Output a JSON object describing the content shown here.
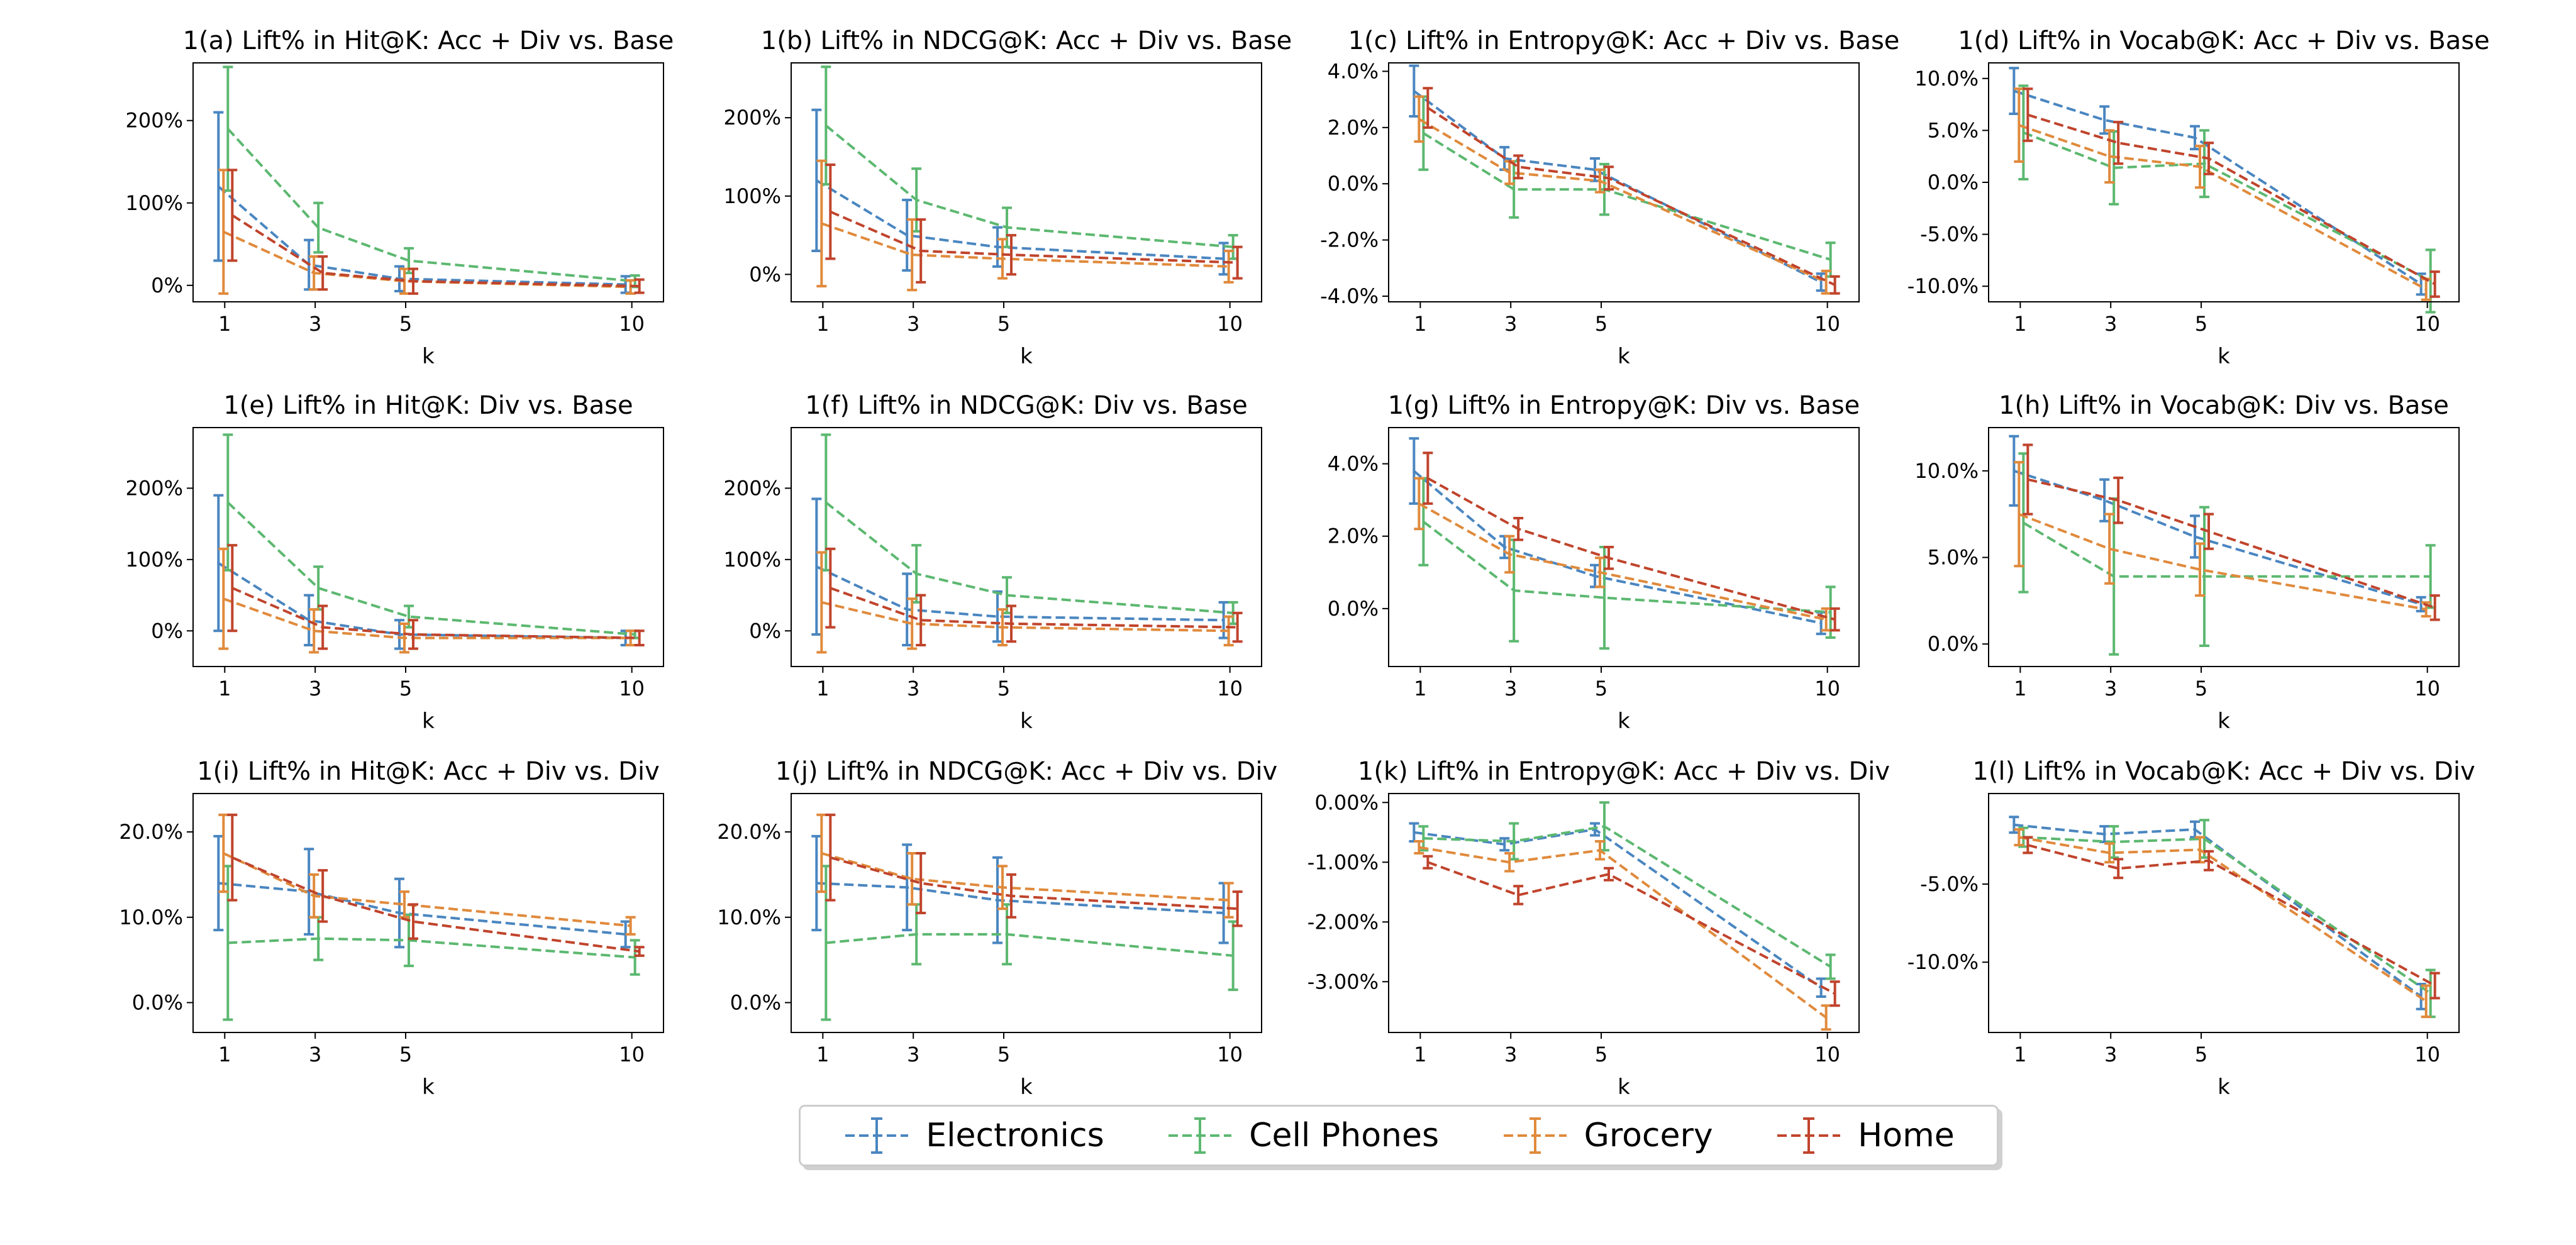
{
  "chart_data": {
    "type": "line",
    "x": [
      1,
      3,
      5,
      10
    ],
    "xlabel": "k",
    "series_names": [
      "Electronics",
      "Cell Phones",
      "Grocery",
      "Home"
    ],
    "colors": {
      "Electronics": "#4a86c0",
      "Cell Phones": "#5cb870",
      "Grocery": "#e08a3c",
      "Home": "#c0442c"
    },
    "legend_placement": "bottom-center",
    "panels": [
      {
        "title": "1(a) Lift% in Hit@K: Acc + Div vs. Base",
        "ylim": [
          -20,
          270
        ],
        "yticks": [
          0,
          100,
          200
        ],
        "ytick_labels": [
          "0%",
          "100%",
          "200%"
        ],
        "series": [
          {
            "name": "Electronics",
            "values": [
              120,
              25,
              8,
              1
            ],
            "err": [
              90,
              30,
              15,
              10
            ]
          },
          {
            "name": "Cell Phones",
            "values": [
              190,
              70,
              30,
              5
            ],
            "err": [
              75,
              30,
              15,
              7
            ]
          },
          {
            "name": "Grocery",
            "values": [
              65,
              15,
              5,
              -2
            ],
            "err": [
              75,
              20,
              15,
              8
            ]
          },
          {
            "name": "Home",
            "values": [
              85,
              15,
              5,
              -1
            ],
            "err": [
              55,
              20,
              15,
              8
            ]
          }
        ]
      },
      {
        "title": "1(b) Lift% in NDCG@K: Acc + Div vs. Base",
        "ylim": [
          -35,
          270
        ],
        "yticks": [
          0,
          100,
          200
        ],
        "ytick_labels": [
          "0%",
          "100%",
          "200%"
        ],
        "series": [
          {
            "name": "Electronics",
            "values": [
              120,
              50,
              35,
              20
            ],
            "err": [
              90,
              45,
              25,
              20
            ]
          },
          {
            "name": "Cell Phones",
            "values": [
              190,
              95,
              60,
              35
            ],
            "err": [
              75,
              40,
              25,
              15
            ]
          },
          {
            "name": "Grocery",
            "values": [
              65,
              25,
              20,
              10
            ],
            "err": [
              80,
              45,
              25,
              20
            ]
          },
          {
            "name": "Home",
            "values": [
              80,
              30,
              25,
              15
            ],
            "err": [
              60,
              40,
              25,
              20
            ]
          }
        ]
      },
      {
        "title": "1(c) Lift% in Entropy@K: Acc + Div vs. Base",
        "ylim": [
          -4.2,
          4.3
        ],
        "yticks": [
          -4,
          -2,
          0,
          2,
          4
        ],
        "ytick_labels": [
          "-4.0%",
          "-2.0%",
          "0.0%",
          "2.0%",
          "4.0%"
        ],
        "series": [
          {
            "name": "Electronics",
            "values": [
              3.3,
              0.9,
              0.5,
              -3.5
            ],
            "err": [
              0.9,
              0.4,
              0.4,
              0.3
            ]
          },
          {
            "name": "Cell Phones",
            "values": [
              1.8,
              -0.2,
              -0.2,
              -2.7
            ],
            "err": [
              1.3,
              1.0,
              0.9,
              0.6
            ]
          },
          {
            "name": "Grocery",
            "values": [
              2.3,
              0.4,
              0.1,
              -3.5
            ],
            "err": [
              0.8,
              0.4,
              0.4,
              0.4
            ]
          },
          {
            "name": "Home",
            "values": [
              2.7,
              0.6,
              0.2,
              -3.6
            ],
            "err": [
              0.7,
              0.4,
              0.4,
              0.3
            ]
          }
        ]
      },
      {
        "title": "1(d) Lift% in Vocab@K: Acc + Div vs. Base",
        "ylim": [
          -11.5,
          11.5
        ],
        "yticks": [
          -10,
          -5,
          0,
          5,
          10
        ],
        "ytick_labels": [
          "-10.0%",
          "-5.0%",
          "0.0%",
          "5.0%",
          "10.0%"
        ],
        "series": [
          {
            "name": "Electronics",
            "values": [
              8.8,
              6.0,
              4.3,
              -9.8
            ],
            "err": [
              2.2,
              1.3,
              1.1,
              1.0
            ]
          },
          {
            "name": "Cell Phones",
            "values": [
              4.8,
              1.4,
              1.8,
              -9.5
            ],
            "err": [
              4.5,
              3.5,
              3.2,
              3.0
            ]
          },
          {
            "name": "Grocery",
            "values": [
              5.5,
              2.5,
              1.5,
              -10.3
            ],
            "err": [
              3.5,
              2.5,
              2.0,
              1.0
            ]
          },
          {
            "name": "Home",
            "values": [
              6.5,
              3.8,
              2.3,
              -9.8
            ],
            "err": [
              2.5,
              2.0,
              1.5,
              1.2
            ]
          }
        ]
      },
      {
        "title": "1(e) Lift% in Hit@K: Div vs. Base",
        "ylim": [
          -50,
          285
        ],
        "yticks": [
          0,
          100,
          200
        ],
        "ytick_labels": [
          "0%",
          "100%",
          "200%"
        ],
        "series": [
          {
            "name": "Electronics",
            "values": [
              95,
              15,
              -5,
              -10
            ],
            "err": [
              95,
              35,
              20,
              10
            ]
          },
          {
            "name": "Cell Phones",
            "values": [
              180,
              60,
              20,
              -5
            ],
            "err": [
              95,
              30,
              15,
              5
            ]
          },
          {
            "name": "Grocery",
            "values": [
              45,
              0,
              -10,
              -10
            ],
            "err": [
              70,
              30,
              20,
              10
            ]
          },
          {
            "name": "Home",
            "values": [
              60,
              5,
              -5,
              -10
            ],
            "err": [
              60,
              30,
              20,
              10
            ]
          }
        ]
      },
      {
        "title": "1(f) Lift% in NDCG@K: Div vs. Base",
        "ylim": [
          -50,
          285
        ],
        "yticks": [
          0,
          100,
          200
        ],
        "ytick_labels": [
          "0%",
          "100%",
          "200%"
        ],
        "series": [
          {
            "name": "Electronics",
            "values": [
              90,
              30,
              20,
              15
            ],
            "err": [
              95,
              50,
              35,
              25
            ]
          },
          {
            "name": "Cell Phones",
            "values": [
              180,
              80,
              50,
              25
            ],
            "err": [
              95,
              40,
              25,
              15
            ]
          },
          {
            "name": "Grocery",
            "values": [
              40,
              10,
              5,
              0
            ],
            "err": [
              70,
              35,
              25,
              20
            ]
          },
          {
            "name": "Home",
            "values": [
              60,
              15,
              10,
              5
            ],
            "err": [
              55,
              35,
              25,
              20
            ]
          }
        ]
      },
      {
        "title": "1(g) Lift% in Entropy@K: Div vs. Base",
        "ylim": [
          -1.6,
          5.0
        ],
        "yticks": [
          0,
          2,
          4
        ],
        "ytick_labels": [
          "0.0%",
          "2.0%",
          "4.0%"
        ],
        "series": [
          {
            "name": "Electronics",
            "values": [
              3.8,
              1.7,
              0.9,
              -0.4
            ],
            "err": [
              0.9,
              0.3,
              0.3,
              0.3
            ]
          },
          {
            "name": "Cell Phones",
            "values": [
              2.4,
              0.5,
              0.3,
              -0.1
            ],
            "err": [
              1.2,
              1.4,
              1.4,
              0.7
            ]
          },
          {
            "name": "Grocery",
            "values": [
              2.9,
              1.5,
              1.0,
              -0.3
            ],
            "err": [
              0.7,
              0.5,
              0.4,
              0.3
            ]
          },
          {
            "name": "Home",
            "values": [
              3.6,
              2.2,
              1.4,
              -0.3
            ],
            "err": [
              0.7,
              0.3,
              0.3,
              0.3
            ]
          }
        ]
      },
      {
        "title": "1(h) Lift% in Vocab@K: Div vs. Base",
        "ylim": [
          -1.3,
          12.5
        ],
        "yticks": [
          0,
          5,
          10
        ],
        "ytick_labels": [
          "0.0%",
          "5.0%",
          "10.0%"
        ],
        "series": [
          {
            "name": "Electronics",
            "values": [
              10.0,
              8.3,
              6.2,
              2.3
            ],
            "err": [
              2.0,
              1.2,
              1.2,
              0.4
            ]
          },
          {
            "name": "Cell Phones",
            "values": [
              7.0,
              3.9,
              3.9,
              3.9
            ],
            "err": [
              4.0,
              4.5,
              4.0,
              1.8
            ]
          },
          {
            "name": "Grocery",
            "values": [
              7.5,
              5.5,
              4.3,
              2.0
            ],
            "err": [
              3.0,
              2.0,
              1.5,
              0.4
            ]
          },
          {
            "name": "Home",
            "values": [
              9.5,
              8.3,
              6.5,
              2.1
            ],
            "err": [
              2.0,
              1.3,
              1.0,
              0.7
            ]
          }
        ]
      },
      {
        "title": "1(i) Lift% in Hit@K: Acc + Div vs. Div",
        "ylim": [
          -3.5,
          24.5
        ],
        "yticks": [
          0,
          10,
          20
        ],
        "ytick_labels": [
          "0.0%",
          "10.0%",
          "20.0%"
        ],
        "series": [
          {
            "name": "Electronics",
            "values": [
              14.0,
              13.0,
              10.5,
              8.0
            ],
            "err": [
              5.5,
              5.0,
              4.0,
              1.5
            ]
          },
          {
            "name": "Cell Phones",
            "values": [
              7.0,
              7.5,
              7.3,
              5.3
            ],
            "err": [
              9.0,
              2.5,
              3.0,
              2.0
            ]
          },
          {
            "name": "Grocery",
            "values": [
              17.5,
              12.5,
              11.5,
              9.0
            ],
            "err": [
              4.5,
              2.5,
              1.5,
              1.0
            ]
          },
          {
            "name": "Home",
            "values": [
              17.0,
              12.5,
              9.5,
              6.0
            ],
            "err": [
              5.0,
              3.0,
              2.0,
              0.5
            ]
          }
        ]
      },
      {
        "title": "1(j) Lift% in NDCG@K: Acc + Div vs. Div",
        "ylim": [
          -3.5,
          24.5
        ],
        "yticks": [
          0,
          10,
          20
        ],
        "ytick_labels": [
          "0.0%",
          "10.0%",
          "20.0%"
        ],
        "series": [
          {
            "name": "Electronics",
            "values": [
              14.0,
              13.5,
              12.0,
              10.5
            ],
            "err": [
              5.5,
              5.0,
              5.0,
              3.5
            ]
          },
          {
            "name": "Cell Phones",
            "values": [
              7.0,
              8.0,
              8.0,
              5.5
            ],
            "err": [
              9.0,
              3.5,
              3.5,
              4.0
            ]
          },
          {
            "name": "Grocery",
            "values": [
              17.5,
              14.5,
              13.5,
              12.0
            ],
            "err": [
              4.5,
              3.0,
              2.5,
              2.0
            ]
          },
          {
            "name": "Home",
            "values": [
              17.0,
              14.0,
              12.5,
              11.0
            ],
            "err": [
              5.0,
              3.5,
              2.5,
              2.0
            ]
          }
        ]
      },
      {
        "title": "1(k) Lift% in Entropy@K: Acc + Div vs. Div",
        "ylim": [
          -3.85,
          0.15
        ],
        "yticks": [
          -3,
          -2,
          -1,
          0
        ],
        "ytick_labels": [
          "-3.00%",
          "-2.00%",
          "-1.00%",
          "0.00%"
        ],
        "series": [
          {
            "name": "Electronics",
            "values": [
              -0.5,
              -0.7,
              -0.45,
              -3.1
            ],
            "err": [
              0.15,
              0.1,
              0.1,
              0.15
            ]
          },
          {
            "name": "Cell Phones",
            "values": [
              -0.6,
              -0.65,
              -0.4,
              -2.75
            ],
            "err": [
              0.2,
              0.3,
              0.4,
              0.2
            ]
          },
          {
            "name": "Grocery",
            "values": [
              -0.75,
              -1.0,
              -0.8,
              -3.6
            ],
            "err": [
              0.1,
              0.15,
              0.15,
              0.2
            ]
          },
          {
            "name": "Home",
            "values": [
              -1.0,
              -1.55,
              -1.2,
              -3.2
            ],
            "err": [
              0.1,
              0.15,
              0.1,
              0.2
            ]
          }
        ]
      },
      {
        "title": "1(l) Lift% in Vocab@K: Acc + Div vs. Div",
        "ylim": [
          -14.5,
          0.8
        ],
        "yticks": [
          -10,
          -5
        ],
        "ytick_labels": [
          "-10.0%",
          "-5.0%"
        ],
        "series": [
          {
            "name": "Electronics",
            "values": [
              -1.2,
              -1.8,
              -1.5,
              -12.2
            ],
            "err": [
              0.5,
              0.5,
              0.5,
              0.8
            ]
          },
          {
            "name": "Cell Phones",
            "values": [
              -2.0,
              -2.3,
              -2.1,
              -12.0
            ],
            "err": [
              0.6,
              1.0,
              1.2,
              1.5
            ]
          },
          {
            "name": "Grocery",
            "values": [
              -2.0,
              -3.0,
              -2.8,
              -12.5
            ],
            "err": [
              0.5,
              0.6,
              0.8,
              1.0
            ]
          },
          {
            "name": "Home",
            "values": [
              -2.5,
              -4.0,
              -3.5,
              -11.5
            ],
            "err": [
              0.5,
              0.6,
              0.6,
              0.8
            ]
          }
        ]
      }
    ]
  }
}
